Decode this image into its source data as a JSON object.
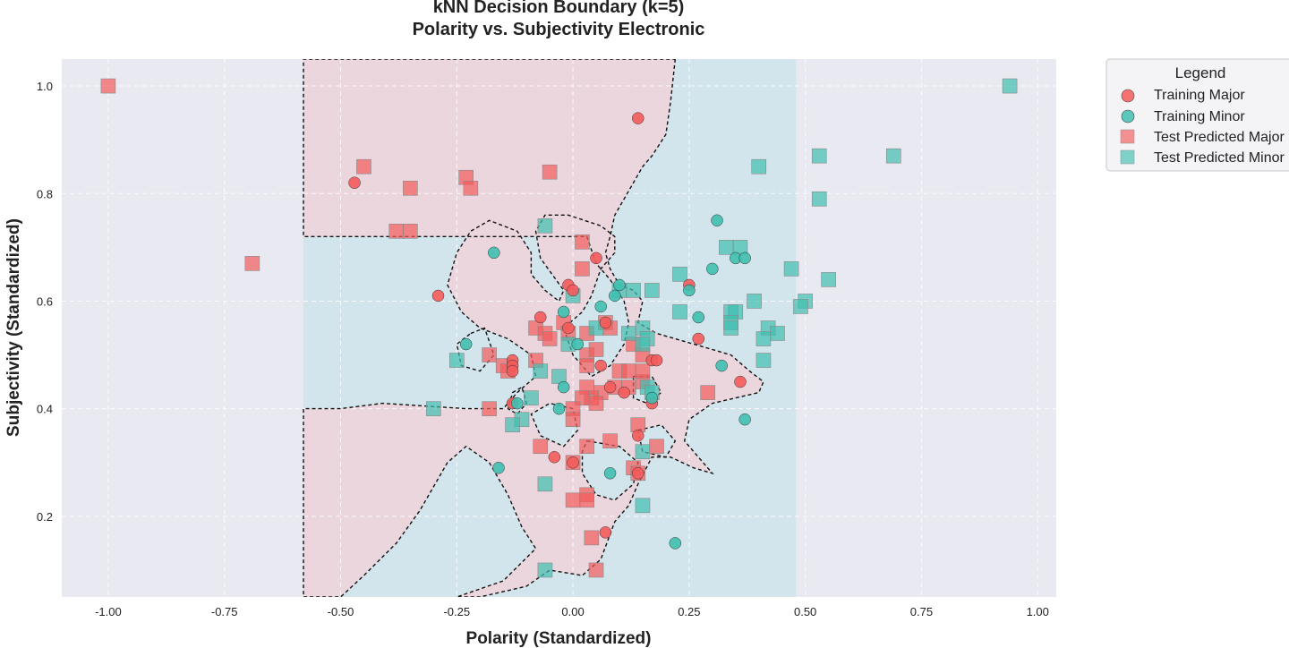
{
  "chart_data": {
    "type": "scatter",
    "title_line1": "kNN Decision Boundary (k=5)",
    "title_line2": "Polarity vs. Subjectivity Electronic",
    "xlabel": "Polarity (Standardized)",
    "ylabel": "Subjectivity (Standardized)",
    "xlim": [
      -1.1,
      1.04
    ],
    "ylim": [
      0.05,
      1.05
    ],
    "xticks": [
      "-1.00",
      "-0.75",
      "-0.50",
      "-0.25",
      "0.00",
      "0.25",
      "0.50",
      "0.75",
      "1.00"
    ],
    "xtick_values": [
      -1.0,
      -0.75,
      -0.5,
      -0.25,
      0.0,
      0.25,
      0.5,
      0.75,
      1.0
    ],
    "yticks": [
      "0.2",
      "0.4",
      "0.6",
      "0.8",
      "1.0"
    ],
    "ytick_values": [
      0.2,
      0.4,
      0.6,
      0.8,
      1.0
    ],
    "grid": true,
    "legend_placement": "outside-top-right",
    "colors": {
      "major": "#f45b5b",
      "minor": "#3fbfb0",
      "region_major": "#ecd6de",
      "region_minor": "#d3e5ec",
      "background": "#e9e9f1"
    },
    "decision_regions": {
      "outer_band_x": [
        -0.58,
        0.48
      ],
      "major_boundary": [
        [
          0.22,
          1.05
        ],
        [
          0.21,
          0.97
        ],
        [
          0.2,
          0.91
        ],
        [
          0.17,
          0.87
        ],
        [
          0.15,
          0.85
        ],
        [
          0.13,
          0.82
        ],
        [
          0.11,
          0.79
        ],
        [
          0.09,
          0.76
        ],
        [
          0.08,
          0.72
        ],
        [
          0.07,
          0.69
        ],
        [
          0.08,
          0.66
        ],
        [
          0.1,
          0.63
        ],
        [
          0.13,
          0.62
        ],
        [
          0.15,
          0.6
        ],
        [
          0.14,
          0.56
        ],
        [
          0.18,
          0.54
        ],
        [
          0.22,
          0.53
        ],
        [
          0.26,
          0.52
        ],
        [
          0.3,
          0.51
        ],
        [
          0.34,
          0.5
        ],
        [
          0.38,
          0.47
        ],
        [
          0.41,
          0.45
        ],
        [
          0.4,
          0.43
        ],
        [
          0.35,
          0.42
        ],
        [
          0.3,
          0.41
        ],
        [
          0.25,
          0.38
        ],
        [
          0.24,
          0.34
        ],
        [
          0.27,
          0.31
        ],
        [
          0.3,
          0.28
        ],
        [
          0.26,
          0.29
        ],
        [
          0.21,
          0.31
        ],
        [
          0.17,
          0.31
        ],
        [
          0.14,
          0.26
        ],
        [
          0.12,
          0.22
        ],
        [
          0.09,
          0.19
        ],
        [
          0.06,
          0.12
        ],
        [
          0.02,
          0.09
        ],
        [
          -0.05,
          0.1
        ],
        [
          -0.1,
          0.07
        ],
        [
          -0.2,
          0.05
        ],
        [
          -0.25,
          0.05
        ],
        [
          -0.15,
          0.08
        ],
        [
          -0.08,
          0.14
        ],
        [
          -0.11,
          0.18
        ],
        [
          -0.14,
          0.24
        ],
        [
          -0.18,
          0.3
        ],
        [
          -0.23,
          0.33
        ],
        [
          -0.27,
          0.3
        ],
        [
          -0.33,
          0.21
        ],
        [
          -0.38,
          0.15
        ],
        [
          -0.45,
          0.09
        ],
        [
          -0.5,
          0.05
        ],
        [
          -0.58,
          0.05
        ],
        [
          -0.58,
          0.4
        ],
        [
          -0.5,
          0.4
        ],
        [
          -0.41,
          0.41
        ],
        [
          -0.23,
          0.4
        ],
        [
          -0.15,
          0.4
        ],
        [
          -0.12,
          0.43
        ],
        [
          -0.08,
          0.46
        ],
        [
          -0.09,
          0.5
        ],
        [
          -0.14,
          0.53
        ],
        [
          -0.2,
          0.55
        ],
        [
          -0.24,
          0.58
        ],
        [
          -0.27,
          0.63
        ],
        [
          -0.25,
          0.69
        ],
        [
          -0.22,
          0.73
        ],
        [
          -0.18,
          0.75
        ],
        [
          -0.12,
          0.73
        ],
        [
          -0.09,
          0.69
        ],
        [
          -0.09,
          0.65
        ],
        [
          -0.06,
          0.62
        ],
        [
          -0.03,
          0.6
        ],
        [
          -0.02,
          0.62
        ],
        [
          -0.07,
          0.68
        ],
        [
          -0.08,
          0.73
        ],
        [
          -0.06,
          0.76
        ],
        [
          -0.01,
          0.76
        ],
        [
          0.06,
          0.74
        ],
        [
          0.09,
          0.72
        ],
        [
          0.09,
          0.69
        ],
        [
          0.06,
          0.66
        ],
        [
          0.04,
          0.61
        ],
        [
          0.02,
          0.58
        ],
        [
          -0.02,
          0.55
        ],
        [
          0.0,
          0.5
        ],
        [
          0.04,
          0.46
        ],
        [
          0.08,
          0.48
        ],
        [
          0.11,
          0.52
        ],
        [
          0.12,
          0.56
        ],
        [
          0.11,
          0.6
        ],
        [
          0.08,
          0.64
        ],
        [
          0.05,
          0.67
        ],
        [
          0.03,
          0.72
        ],
        [
          -0.58,
          0.72
        ],
        [
          -0.58,
          1.05
        ]
      ],
      "minor_islands": [
        [
          [
            0.03,
            0.34
          ],
          [
            0.1,
            0.33
          ],
          [
            0.14,
            0.3
          ],
          [
            0.13,
            0.26
          ],
          [
            0.09,
            0.23
          ],
          [
            0.05,
            0.24
          ],
          [
            0.02,
            0.28
          ],
          [
            0.02,
            0.32
          ]
        ],
        [
          [
            -0.07,
            0.35
          ],
          [
            -0.02,
            0.33
          ],
          [
            0.01,
            0.36
          ],
          [
            0.0,
            0.4
          ],
          [
            -0.05,
            0.41
          ],
          [
            -0.09,
            0.39
          ]
        ],
        [
          [
            -0.22,
            0.54
          ],
          [
            -0.19,
            0.55
          ],
          [
            -0.17,
            0.5
          ],
          [
            -0.2,
            0.47
          ],
          [
            -0.24,
            0.48
          ],
          [
            -0.25,
            0.52
          ]
        ],
        [
          [
            -0.13,
            0.43
          ],
          [
            -0.11,
            0.44
          ],
          [
            -0.1,
            0.41
          ],
          [
            -0.12,
            0.39
          ],
          [
            -0.14,
            0.4
          ]
        ],
        [
          [
            0.14,
            0.36
          ],
          [
            0.19,
            0.37
          ],
          [
            0.22,
            0.34
          ],
          [
            0.2,
            0.31
          ],
          [
            0.15,
            0.32
          ]
        ],
        [
          [
            0.13,
            0.46
          ],
          [
            0.17,
            0.46
          ],
          [
            0.19,
            0.43
          ],
          [
            0.16,
            0.41
          ],
          [
            0.13,
            0.42
          ]
        ]
      ]
    },
    "series": [
      {
        "name": "Training Major",
        "marker": "circle",
        "points": [
          [
            0.14,
            0.94
          ],
          [
            -0.47,
            0.82
          ],
          [
            -0.29,
            0.61
          ],
          [
            0.05,
            0.68
          ],
          [
            -0.01,
            0.63
          ],
          [
            0.0,
            0.62
          ],
          [
            -0.07,
            0.57
          ],
          [
            -0.01,
            0.55
          ],
          [
            -0.13,
            0.49
          ],
          [
            -0.13,
            0.48
          ],
          [
            -0.13,
            0.47
          ],
          [
            -0.13,
            0.41
          ],
          [
            0.07,
            0.56
          ],
          [
            0.06,
            0.48
          ],
          [
            0.08,
            0.44
          ],
          [
            0.11,
            0.43
          ],
          [
            0.17,
            0.41
          ],
          [
            0.17,
            0.49
          ],
          [
            0.14,
            0.35
          ],
          [
            0.0,
            0.3
          ],
          [
            -0.04,
            0.31
          ],
          [
            0.14,
            0.28
          ],
          [
            0.07,
            0.17
          ],
          [
            0.27,
            0.53
          ],
          [
            0.25,
            0.63
          ],
          [
            0.36,
            0.45
          ],
          [
            0.18,
            0.49
          ]
        ]
      },
      {
        "name": "Training Minor",
        "marker": "circle",
        "points": [
          [
            -0.17,
            0.69
          ],
          [
            -0.23,
            0.52
          ],
          [
            -0.02,
            0.58
          ],
          [
            0.01,
            0.52
          ],
          [
            0.06,
            0.59
          ],
          [
            0.1,
            0.63
          ],
          [
            0.09,
            0.61
          ],
          [
            0.31,
            0.75
          ],
          [
            0.35,
            0.68
          ],
          [
            0.37,
            0.68
          ],
          [
            0.3,
            0.66
          ],
          [
            0.25,
            0.62
          ],
          [
            0.27,
            0.57
          ],
          [
            0.32,
            0.48
          ],
          [
            0.37,
            0.38
          ],
          [
            -0.02,
            0.44
          ],
          [
            -0.03,
            0.4
          ],
          [
            -0.12,
            0.41
          ],
          [
            -0.16,
            0.29
          ],
          [
            0.08,
            0.28
          ],
          [
            0.22,
            0.15
          ],
          [
            0.17,
            0.42
          ]
        ]
      },
      {
        "name": "Test Predicted Major",
        "marker": "square",
        "points": [
          [
            -1.0,
            1.0
          ],
          [
            -0.69,
            0.67
          ],
          [
            -0.45,
            0.85
          ],
          [
            -0.35,
            0.81
          ],
          [
            -0.23,
            0.83
          ],
          [
            -0.22,
            0.81
          ],
          [
            -0.05,
            0.84
          ],
          [
            -0.38,
            0.73
          ],
          [
            -0.35,
            0.73
          ],
          [
            0.02,
            0.71
          ],
          [
            0.02,
            0.66
          ],
          [
            -0.08,
            0.55
          ],
          [
            -0.06,
            0.54
          ],
          [
            -0.05,
            0.53
          ],
          [
            -0.02,
            0.56
          ],
          [
            -0.01,
            0.54
          ],
          [
            0.03,
            0.54
          ],
          [
            0.07,
            0.56
          ],
          [
            0.08,
            0.55
          ],
          [
            0.13,
            0.52
          ],
          [
            0.15,
            0.5
          ],
          [
            -0.18,
            0.5
          ],
          [
            -0.15,
            0.48
          ],
          [
            -0.14,
            0.47
          ],
          [
            -0.08,
            0.49
          ],
          [
            0.03,
            0.5
          ],
          [
            0.05,
            0.51
          ],
          [
            0.03,
            0.48
          ],
          [
            0.1,
            0.47
          ],
          [
            0.12,
            0.47
          ],
          [
            0.15,
            0.45
          ],
          [
            0.12,
            0.44
          ],
          [
            0.06,
            0.43
          ],
          [
            0.04,
            0.42
          ],
          [
            0.03,
            0.44
          ],
          [
            0.09,
            0.44
          ],
          [
            0.02,
            0.42
          ],
          [
            0.05,
            0.41
          ],
          [
            0.0,
            0.4
          ],
          [
            0.0,
            0.38
          ],
          [
            -0.18,
            0.4
          ],
          [
            -0.07,
            0.33
          ],
          [
            0.03,
            0.33
          ],
          [
            0.08,
            0.34
          ],
          [
            0.14,
            0.37
          ],
          [
            0.18,
            0.33
          ],
          [
            0.0,
            0.3
          ],
          [
            0.13,
            0.29
          ],
          [
            0.14,
            0.28
          ],
          [
            0.03,
            0.24
          ],
          [
            0.0,
            0.23
          ],
          [
            0.03,
            0.23
          ],
          [
            0.04,
            0.16
          ],
          [
            0.05,
            0.1
          ],
          [
            0.29,
            0.43
          ],
          [
            0.15,
            0.47
          ]
        ]
      },
      {
        "name": "Test Predicted Minor",
        "marker": "square",
        "points": [
          [
            0.94,
            1.0
          ],
          [
            0.53,
            0.87
          ],
          [
            0.69,
            0.87
          ],
          [
            0.4,
            0.85
          ],
          [
            0.53,
            0.79
          ],
          [
            -0.06,
            0.74
          ],
          [
            0.33,
            0.7
          ],
          [
            0.36,
            0.7
          ],
          [
            0.47,
            0.66
          ],
          [
            0.23,
            0.65
          ],
          [
            0.55,
            0.64
          ],
          [
            0.1,
            0.62
          ],
          [
            0.13,
            0.62
          ],
          [
            0.17,
            0.62
          ],
          [
            0.0,
            0.61
          ],
          [
            0.39,
            0.6
          ],
          [
            0.5,
            0.6
          ],
          [
            0.49,
            0.59
          ],
          [
            0.34,
            0.58
          ],
          [
            0.35,
            0.58
          ],
          [
            0.23,
            0.58
          ],
          [
            0.34,
            0.56
          ],
          [
            0.34,
            0.55
          ],
          [
            0.15,
            0.55
          ],
          [
            0.05,
            0.55
          ],
          [
            0.12,
            0.54
          ],
          [
            0.42,
            0.55
          ],
          [
            0.44,
            0.54
          ],
          [
            0.41,
            0.53
          ],
          [
            0.16,
            0.53
          ],
          [
            -0.01,
            0.52
          ],
          [
            0.15,
            0.52
          ],
          [
            0.41,
            0.49
          ],
          [
            -0.25,
            0.49
          ],
          [
            -0.07,
            0.47
          ],
          [
            -0.03,
            0.46
          ],
          [
            0.16,
            0.44
          ],
          [
            -0.09,
            0.42
          ],
          [
            0.17,
            0.43
          ],
          [
            -0.3,
            0.4
          ],
          [
            -0.11,
            0.38
          ],
          [
            -0.13,
            0.37
          ],
          [
            0.15,
            0.32
          ],
          [
            -0.06,
            0.26
          ],
          [
            0.15,
            0.22
          ],
          [
            -0.06,
            0.1
          ]
        ]
      }
    ]
  },
  "legend": {
    "title": "Legend",
    "items": [
      "Training Major",
      "Training Minor",
      "Test Predicted Major",
      "Test Predicted Minor"
    ]
  }
}
